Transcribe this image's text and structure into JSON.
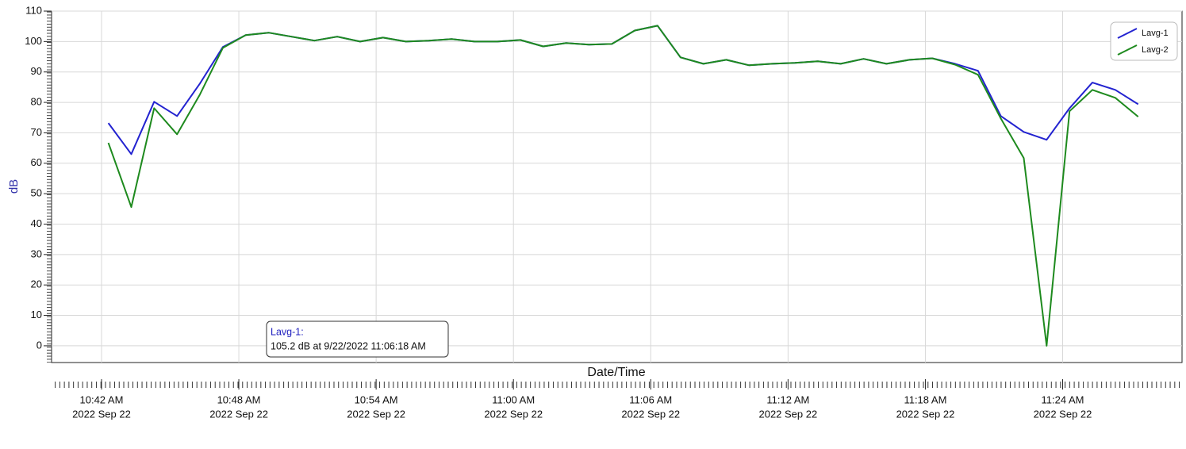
{
  "chart_data": {
    "type": "line",
    "x_label": "Date/Time",
    "y_label": "dB",
    "x": [
      "2022-09-22T10:42:18",
      "2022-09-22T10:43:18",
      "2022-09-22T10:44:18",
      "2022-09-22T10:45:18",
      "2022-09-22T10:46:18",
      "2022-09-22T10:47:18",
      "2022-09-22T10:48:18",
      "2022-09-22T10:49:18",
      "2022-09-22T10:50:18",
      "2022-09-22T10:51:18",
      "2022-09-22T10:52:18",
      "2022-09-22T10:53:18",
      "2022-09-22T10:54:18",
      "2022-09-22T10:55:18",
      "2022-09-22T10:56:18",
      "2022-09-22T10:57:18",
      "2022-09-22T10:58:18",
      "2022-09-22T10:59:18",
      "2022-09-22T11:00:18",
      "2022-09-22T11:01:18",
      "2022-09-22T11:02:18",
      "2022-09-22T11:03:18",
      "2022-09-22T11:04:18",
      "2022-09-22T11:05:18",
      "2022-09-22T11:06:18",
      "2022-09-22T11:07:18",
      "2022-09-22T11:08:18",
      "2022-09-22T11:09:18",
      "2022-09-22T11:10:18",
      "2022-09-22T11:11:18",
      "2022-09-22T11:12:18",
      "2022-09-22T11:13:18",
      "2022-09-22T11:14:18",
      "2022-09-22T11:15:18",
      "2022-09-22T11:16:18",
      "2022-09-22T11:17:18",
      "2022-09-22T11:18:18",
      "2022-09-22T11:19:18",
      "2022-09-22T11:20:18",
      "2022-09-22T11:21:18",
      "2022-09-22T11:22:18",
      "2022-09-22T11:23:18",
      "2022-09-22T11:24:18",
      "2022-09-22T11:25:18",
      "2022-09-22T11:26:18",
      "2022-09-22T11:27:18"
    ],
    "series": [
      {
        "name": "Lavg-1",
        "color": "#2323d0",
        "values": [
          73.2,
          63,
          80.2,
          75.5,
          86.2,
          98.2,
          102.1,
          102.9,
          101.6,
          100.3,
          101.6,
          100,
          101.3,
          100,
          100.3,
          100.8,
          100,
          100,
          100.5,
          98.4,
          99.5,
          99,
          99.2,
          103.6,
          105.2,
          94.8,
          92.7,
          94,
          92.2,
          92.7,
          93,
          93.5,
          92.7,
          94.3,
          92.7,
          94,
          94.5,
          92.7,
          90.4,
          75.5,
          70.3,
          67.7,
          78.1,
          86.5,
          84.1,
          79.4
        ]
      },
      {
        "name": "Lavg-2",
        "color": "#1e8a1e",
        "values": [
          66.7,
          45.6,
          78.1,
          69.5,
          82.6,
          97.9,
          102.1,
          102.9,
          101.6,
          100.3,
          101.6,
          100,
          101.3,
          100,
          100.3,
          100.8,
          100,
          100,
          100.5,
          98.4,
          99.5,
          99,
          99.2,
          103.6,
          105.2,
          94.8,
          92.7,
          94,
          92.2,
          92.7,
          93,
          93.5,
          92.7,
          94.3,
          92.7,
          94,
          94.5,
          92.4,
          89.1,
          74.7,
          61.7,
          0,
          77.1,
          84.1,
          81.5,
          75.3
        ]
      }
    ],
    "xlim": [
      "2022-09-22T10:39:49",
      "2022-09-22T11:29:13"
    ],
    "xticks": [
      {
        "value": "2022-09-22T10:42:00",
        "label": "10:42 AM"
      },
      {
        "value": "2022-09-22T10:48:00",
        "label": "10:48 AM"
      },
      {
        "value": "2022-09-22T10:54:00",
        "label": "10:54 AM"
      },
      {
        "value": "2022-09-22T11:00:00",
        "label": "11:00 AM"
      },
      {
        "value": "2022-09-22T11:06:00",
        "label": "11:06 AM"
      },
      {
        "value": "2022-09-22T11:12:00",
        "label": "11:12 AM"
      },
      {
        "value": "2022-09-22T11:18:00",
        "label": "11:18 AM"
      },
      {
        "value": "2022-09-22T11:24:00",
        "label": "11:24 AM"
      }
    ],
    "xtick_dates": [
      "2022 Sep 22",
      "2022 Sep 22",
      "2022 Sep 22",
      "2022 Sep 22",
      "2022 Sep 22",
      "2022 Sep 22",
      "2022 Sep 22",
      "2022 Sep 22"
    ],
    "ylim": [
      -5.5,
      110
    ],
    "yticks": [
      0,
      10,
      20,
      30,
      40,
      50,
      60,
      70,
      80,
      90,
      100,
      110
    ],
    "grid": true,
    "legend": "upper right",
    "tooltip": {
      "title": "Lavg-1:",
      "text": "105.2 dB at 9/22/2022 11:06:18 AM"
    }
  }
}
